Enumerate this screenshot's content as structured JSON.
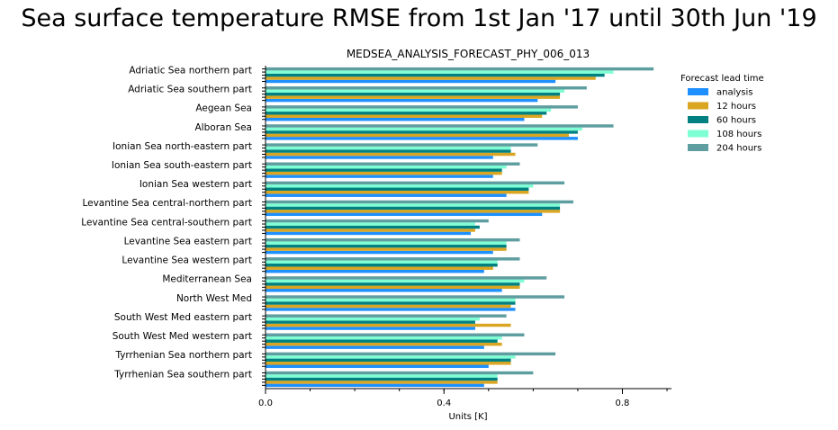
{
  "suptitle": "Sea surface temperature RMSE from 1st Jan '17 until 30th Jun '19",
  "chart_data": {
    "type": "bar",
    "orientation": "horizontal",
    "title": "MEDSEA_ANALYSIS_FORECAST_PHY_006_013",
    "xlabel": "Units [K]",
    "ylabel": "",
    "xlim": [
      0.0,
      0.91
    ],
    "xticks": [
      0.0,
      0.4,
      0.8
    ],
    "xtick_labels": [
      "0.0",
      "0.4",
      "0.8"
    ],
    "grid": false,
    "legend": {
      "title": "Forecast lead time",
      "placement": "right"
    },
    "categories": [
      "Adriatic Sea northern part",
      "Adriatic Sea southern part",
      "Aegean Sea",
      "Alboran Sea",
      "Ionian Sea north-eastern part",
      "Ionian Sea south-eastern part",
      "Ionian Sea western part",
      "Levantine Sea central-northern part",
      "Levantine Sea central-southern part",
      "Levantine Sea eastern part",
      "Levantine Sea western part",
      "Mediterranean Sea",
      "North West Med",
      "South West Med eastern part",
      "South West Med western part",
      "Tyrrhenian Sea northern part",
      "Tyrrhenian Sea southern part"
    ],
    "series": [
      {
        "name": "analysis",
        "color": "#1e90ff",
        "values": [
          0.65,
          0.61,
          0.58,
          0.7,
          0.51,
          0.51,
          0.54,
          0.62,
          0.46,
          0.51,
          0.49,
          0.53,
          0.56,
          0.47,
          0.49,
          0.5,
          0.49
        ]
      },
      {
        "name": "12 hours",
        "color": "#daa520",
        "values": [
          0.74,
          0.66,
          0.62,
          0.68,
          0.56,
          0.53,
          0.59,
          0.66,
          0.47,
          0.54,
          0.51,
          0.57,
          0.55,
          0.55,
          0.53,
          0.55,
          0.52
        ]
      },
      {
        "name": "60 hours",
        "color": "#008080",
        "values": [
          0.76,
          0.66,
          0.63,
          0.7,
          0.55,
          0.53,
          0.59,
          0.66,
          0.48,
          0.54,
          0.52,
          0.57,
          0.56,
          0.47,
          0.52,
          0.55,
          0.52
        ]
      },
      {
        "name": "108 hours",
        "color": "#7fffd4",
        "values": [
          0.78,
          0.67,
          0.64,
          0.71,
          0.55,
          0.54,
          0.6,
          0.66,
          0.47,
          0.54,
          0.52,
          0.58,
          0.56,
          0.48,
          0.53,
          0.56,
          0.52
        ]
      },
      {
        "name": "204 hours",
        "color": "#5f9ea0",
        "values": [
          0.87,
          0.72,
          0.7,
          0.78,
          0.61,
          0.57,
          0.67,
          0.69,
          0.5,
          0.57,
          0.57,
          0.63,
          0.67,
          0.54,
          0.58,
          0.65,
          0.6
        ]
      }
    ]
  }
}
